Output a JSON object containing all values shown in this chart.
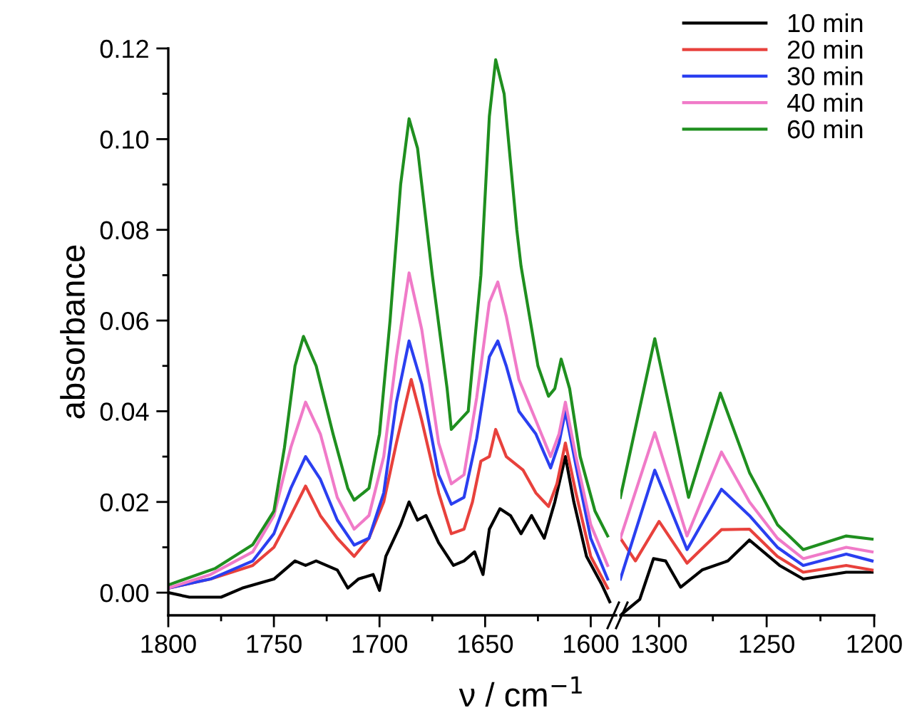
{
  "chart_data": [
    {
      "type": "line",
      "ylabel": "absorbance",
      "xlabel": "ν / cm$^{−1}$",
      "xlim": [
        1800,
        1588
      ],
      "xticks": [
        1800,
        1750,
        1700,
        1650,
        1600
      ],
      "ylim": [
        -0.005,
        0.12
      ],
      "yticks": [
        {
          "value": 0,
          "label": "0.00"
        },
        {
          "value": 0.02,
          "label": "0.02"
        },
        {
          "value": 0.04,
          "label": "0.04"
        },
        {
          "value": 0.06,
          "label": "0.06"
        },
        {
          "value": 0.08,
          "label": "0.08"
        },
        {
          "value": 0.1,
          "label": "0.10"
        },
        {
          "value": 0.12,
          "label": "0.12"
        }
      ],
      "grid": false,
      "legend": false,
      "marker": "none",
      "line_style": "solid",
      "series": [
        {
          "color": "#000000",
          "x": [
            1800,
            1790,
            1775,
            1765,
            1750,
            1740,
            1735,
            1730,
            1720,
            1715,
            1710,
            1703,
            1700,
            1697,
            1690,
            1686,
            1682,
            1678,
            1672,
            1665,
            1660,
            1655,
            1651,
            1648,
            1643,
            1638,
            1633,
            1628,
            1622,
            1617,
            1612,
            1608,
            1602,
            1595,
            1591
          ],
          "values": [
            0.0,
            -0.001,
            -0.001,
            0.001,
            0.003,
            0.007,
            0.006,
            0.007,
            0.005,
            0.001,
            0.003,
            0.004,
            0.0005,
            0.008,
            0.015,
            0.02,
            0.016,
            0.017,
            0.011,
            0.006,
            0.007,
            0.009,
            0.004,
            0.014,
            0.0185,
            0.017,
            0.013,
            0.017,
            0.012,
            0.02,
            0.03,
            0.02,
            0.008,
            0.002,
            -0.002
          ]
        },
        {
          "color": "#e8413c",
          "x": [
            1800,
            1780,
            1760,
            1750,
            1742,
            1735,
            1728,
            1720,
            1712,
            1705,
            1698,
            1692,
            1685,
            1680,
            1672,
            1666,
            1660,
            1656,
            1652,
            1648,
            1645,
            1640,
            1632,
            1626,
            1620,
            1616,
            1612,
            1607,
            1600,
            1592
          ],
          "values": [
            0.001,
            0.003,
            0.006,
            0.01,
            0.017,
            0.0235,
            0.017,
            0.012,
            0.008,
            0.012,
            0.02,
            0.033,
            0.047,
            0.038,
            0.022,
            0.013,
            0.014,
            0.02,
            0.029,
            0.03,
            0.036,
            0.03,
            0.027,
            0.022,
            0.019,
            0.024,
            0.033,
            0.022,
            0.008,
            0.001
          ]
        },
        {
          "color": "#2a3ff0",
          "x": [
            1800,
            1780,
            1760,
            1750,
            1742,
            1735,
            1728,
            1720,
            1712,
            1705,
            1698,
            1692,
            1686,
            1680,
            1672,
            1666,
            1660,
            1654,
            1648,
            1644,
            1640,
            1634,
            1626,
            1619,
            1615,
            1612,
            1607,
            1600,
            1592
          ],
          "values": [
            0.001,
            0.003,
            0.007,
            0.013,
            0.023,
            0.03,
            0.025,
            0.016,
            0.0105,
            0.012,
            0.022,
            0.042,
            0.0555,
            0.046,
            0.026,
            0.0195,
            0.021,
            0.034,
            0.052,
            0.0555,
            0.05,
            0.04,
            0.035,
            0.0275,
            0.033,
            0.04,
            0.028,
            0.012,
            0.003
          ]
        },
        {
          "color": "#f07ac8",
          "x": [
            1800,
            1780,
            1760,
            1750,
            1742,
            1735,
            1728,
            1720,
            1712,
            1705,
            1698,
            1692,
            1686,
            1680,
            1672,
            1666,
            1660,
            1654,
            1648,
            1644,
            1640,
            1634,
            1626,
            1619,
            1615,
            1612,
            1607,
            1600,
            1592
          ],
          "values": [
            0.001,
            0.004,
            0.009,
            0.017,
            0.032,
            0.042,
            0.035,
            0.021,
            0.014,
            0.017,
            0.03,
            0.052,
            0.0705,
            0.058,
            0.033,
            0.024,
            0.026,
            0.043,
            0.064,
            0.0685,
            0.061,
            0.047,
            0.038,
            0.03,
            0.035,
            0.042,
            0.03,
            0.015,
            0.006
          ]
        },
        {
          "color": "#1f8f1f",
          "x": [
            1800,
            1778,
            1760,
            1750,
            1745,
            1740,
            1736,
            1730,
            1722,
            1715,
            1712,
            1705,
            1700,
            1695,
            1690,
            1686,
            1682,
            1675,
            1668,
            1666,
            1658,
            1652,
            1648,
            1645,
            1641,
            1635,
            1633,
            1625,
            1620,
            1617,
            1614,
            1610,
            1605,
            1598,
            1592
          ],
          "values": [
            0.0017,
            0.0053,
            0.0106,
            0.018,
            0.032,
            0.05,
            0.0565,
            0.05,
            0.035,
            0.023,
            0.0204,
            0.023,
            0.035,
            0.06,
            0.09,
            0.1045,
            0.098,
            0.07,
            0.045,
            0.036,
            0.04,
            0.07,
            0.105,
            0.1175,
            0.11,
            0.08,
            0.072,
            0.05,
            0.0433,
            0.045,
            0.0515,
            0.045,
            0.03,
            0.018,
            0.0125
          ]
        }
      ]
    },
    {
      "type": "line",
      "xlim": [
        1318,
        1200
      ],
      "xticks": [
        1300,
        1250,
        1200
      ],
      "ylim": [
        -0.005,
        0.12
      ],
      "tick_labels": "x",
      "grid": false,
      "legend": "top right",
      "marker": "none",
      "line_style": "solid",
      "series": [
        {
          "name": "10 min",
          "color": "#000000",
          "x": [
            1318,
            1309,
            1302.6,
            1297,
            1290,
            1280,
            1268,
            1258,
            1244,
            1233,
            1213,
            1201
          ],
          "values": [
            -0.005,
            -0.0015,
            0.0075,
            0.007,
            0.0012,
            0.005,
            0.007,
            0.0116,
            0.006,
            0.003,
            0.0045,
            0.0045
          ]
        },
        {
          "name": "20 min",
          "color": "#e8413c",
          "x": [
            1318,
            1311,
            1300,
            1287,
            1271,
            1258,
            1245,
            1233,
            1213,
            1201
          ],
          "values": [
            0.012,
            0.007,
            0.0157,
            0.0065,
            0.0139,
            0.014,
            0.008,
            0.0045,
            0.006,
            0.005
          ]
        },
        {
          "name": "30 min",
          "color": "#2a3ff0",
          "x": [
            1318,
            1302,
            1287,
            1271,
            1258,
            1245,
            1233,
            1213,
            1201
          ],
          "values": [
            0.003,
            0.027,
            0.0095,
            0.0228,
            0.017,
            0.01,
            0.006,
            0.0085,
            0.007
          ]
        },
        {
          "name": "40 min",
          "color": "#f07ac8",
          "x": [
            1318,
            1302,
            1287,
            1271,
            1258,
            1245,
            1233,
            1213,
            1201
          ],
          "values": [
            0.012,
            0.0353,
            0.0125,
            0.031,
            0.02,
            0.012,
            0.0075,
            0.01,
            0.009
          ]
        },
        {
          "name": "60 min",
          "color": "#1f8f1f",
          "x": [
            1318,
            1302,
            1286.3,
            1271.5,
            1258,
            1245,
            1233,
            1213,
            1201
          ],
          "values": [
            0.021,
            0.056,
            0.021,
            0.044,
            0.0265,
            0.015,
            0.0095,
            0.0125,
            0.0118
          ]
        }
      ]
    }
  ]
}
